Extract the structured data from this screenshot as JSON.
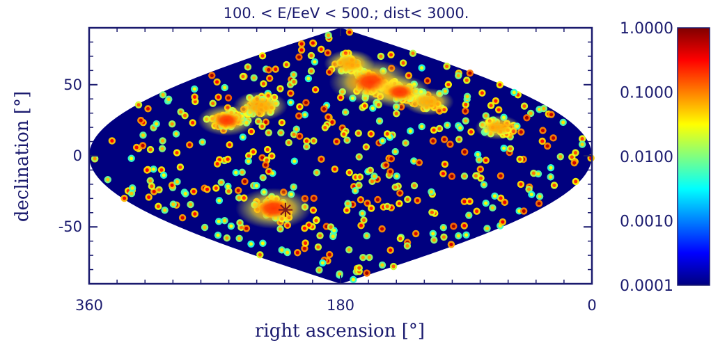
{
  "chart_data": {
    "type": "heatmap",
    "title": "100. < E/EeV < 500.; dist< 3000.",
    "xlabel": "right ascension [°]",
    "ylabel": "declination [°]",
    "projection": "sinusoidal",
    "xlim": [
      360,
      0
    ],
    "ylim": [
      -90,
      90
    ],
    "x_ticks": [
      {
        "value": 360,
        "label": "360"
      },
      {
        "value": 180,
        "label": "180"
      },
      {
        "value": 0,
        "label": "0"
      }
    ],
    "y_ticks": [
      {
        "value": 50,
        "label": "50"
      },
      {
        "value": 0,
        "label": "0"
      },
      {
        "value": -50,
        "label": "-50"
      }
    ],
    "colorbar": {
      "scale": "log",
      "range": [
        0.0001,
        1.0
      ],
      "tick_labels": [
        "1.0000",
        "0.1000",
        "0.0100",
        "0.0010",
        "0.0001"
      ],
      "colormap": [
        "#00007f",
        "#0000ff",
        "#0080ff",
        "#00ffff",
        "#80ff80",
        "#ffff00",
        "#ff8000",
        "#ff0000",
        "#800000"
      ]
    },
    "background_color": "#00007f",
    "hotspots": [
      {
        "ra": 145,
        "dec": 52,
        "level": 0.6
      },
      {
        "ra": 120,
        "dec": 45,
        "level": 0.3
      },
      {
        "ra": 100,
        "dec": 38,
        "level": 0.15
      },
      {
        "ra": 270,
        "dec": 25,
        "level": 0.25
      },
      {
        "ra": 250,
        "dec": 35,
        "level": 0.2
      },
      {
        "ra": 240,
        "dec": -37,
        "level": 0.5
      },
      {
        "ra": 165,
        "dec": 65,
        "level": 0.15
      },
      {
        "ra": 60,
        "dec": 20,
        "level": 0.08
      }
    ],
    "marker": {
      "ra": 230,
      "dec": -38,
      "symbol": "asterisk",
      "color": "#7a1a1a"
    }
  }
}
